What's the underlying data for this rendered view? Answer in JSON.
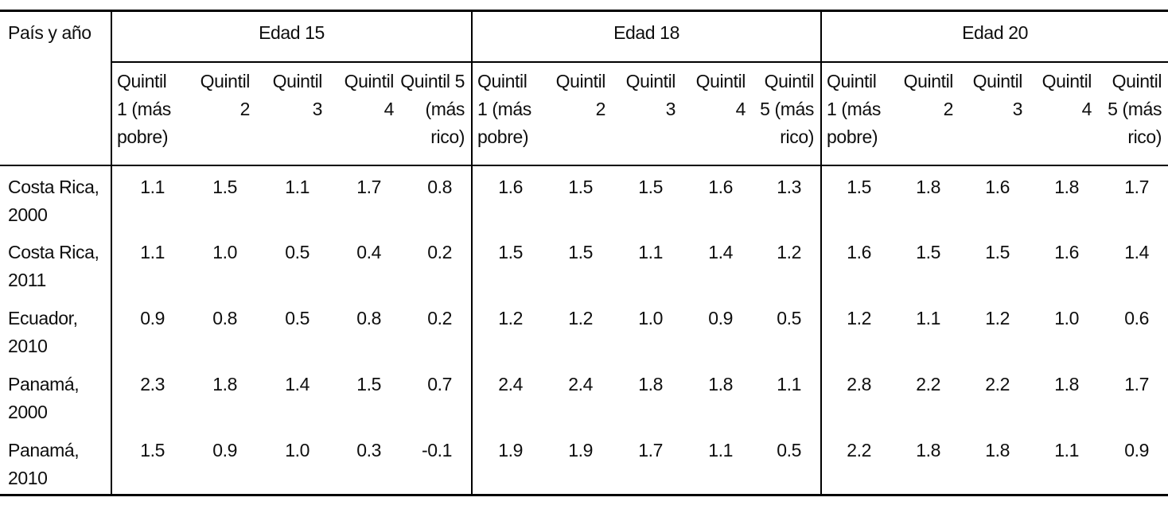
{
  "table": {
    "corner_label": "País y año",
    "groups": [
      {
        "label": "Edad 15",
        "columns": [
          [
            "Quintil",
            "1 (más",
            "pobre)"
          ],
          [
            "Quintil",
            "2"
          ],
          [
            "Quintil",
            "3"
          ],
          [
            "Quintil",
            "4"
          ],
          [
            "Quintil 5",
            "(más",
            "rico)"
          ]
        ]
      },
      {
        "label": "Edad 18",
        "columns": [
          [
            "Quintil",
            "1 (más",
            "pobre)"
          ],
          [
            "Quintil",
            "2"
          ],
          [
            "Quintil",
            "3"
          ],
          [
            "Quintil",
            "4"
          ],
          [
            "Quintil",
            "5 (más",
            "rico)"
          ]
        ]
      },
      {
        "label": "Edad 20",
        "columns": [
          [
            "Quintil",
            "1 (más",
            "pobre)"
          ],
          [
            "Quintil",
            "2"
          ],
          [
            "Quintil",
            "3"
          ],
          [
            "Quintil",
            "4"
          ],
          [
            "Quintil",
            "5 (más",
            "rico)"
          ]
        ]
      }
    ],
    "rows": [
      {
        "label": [
          "Costa Rica,",
          "2000"
        ],
        "values": [
          "1.1",
          "1.5",
          "1.1",
          "1.7",
          "0.8",
          "1.6",
          "1.5",
          "1.5",
          "1.6",
          "1.3",
          "1.5",
          "1.8",
          "1.6",
          "1.8",
          "1.7"
        ]
      },
      {
        "label": [
          "Costa Rica,",
          "2011"
        ],
        "values": [
          "1.1",
          "1.0",
          "0.5",
          "0.4",
          "0.2",
          "1.5",
          "1.5",
          "1.1",
          "1.4",
          "1.2",
          "1.6",
          "1.5",
          "1.5",
          "1.6",
          "1.4"
        ]
      },
      {
        "label": [
          "Ecuador,",
          "2010"
        ],
        "values": [
          "0.9",
          "0.8",
          "0.5",
          "0.8",
          "0.2",
          "1.2",
          "1.2",
          "1.0",
          "0.9",
          "0.5",
          "1.2",
          "1.1",
          "1.2",
          "1.0",
          "0.6"
        ]
      },
      {
        "label": [
          "Panamá,",
          "2000"
        ],
        "values": [
          "2.3",
          "1.8",
          "1.4",
          "1.5",
          "0.7",
          "2.4",
          "2.4",
          "1.8",
          "1.8",
          "1.1",
          "2.8",
          "2.2",
          "2.2",
          "1.8",
          "1.7"
        ]
      },
      {
        "label": [
          "Panamá,",
          "2010"
        ],
        "values": [
          "1.5",
          "0.9",
          "1.0",
          "0.3",
          "-0.1",
          "1.9",
          "1.9",
          "1.7",
          "1.1",
          "0.5",
          "2.2",
          "1.8",
          "1.8",
          "1.1",
          "0.9"
        ]
      }
    ]
  }
}
